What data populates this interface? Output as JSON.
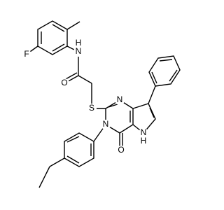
{
  "atoms": [
    {
      "label": "F"
    },
    {
      "label": "N"
    },
    {
      "label": "H"
    },
    {
      "label": "O"
    },
    {
      "label": "S"
    },
    {
      "label": "N"
    },
    {
      "label": "N"
    },
    {
      "label": "O"
    },
    {
      "label": "N"
    },
    {
      "label": "H"
    }
  ]
}
